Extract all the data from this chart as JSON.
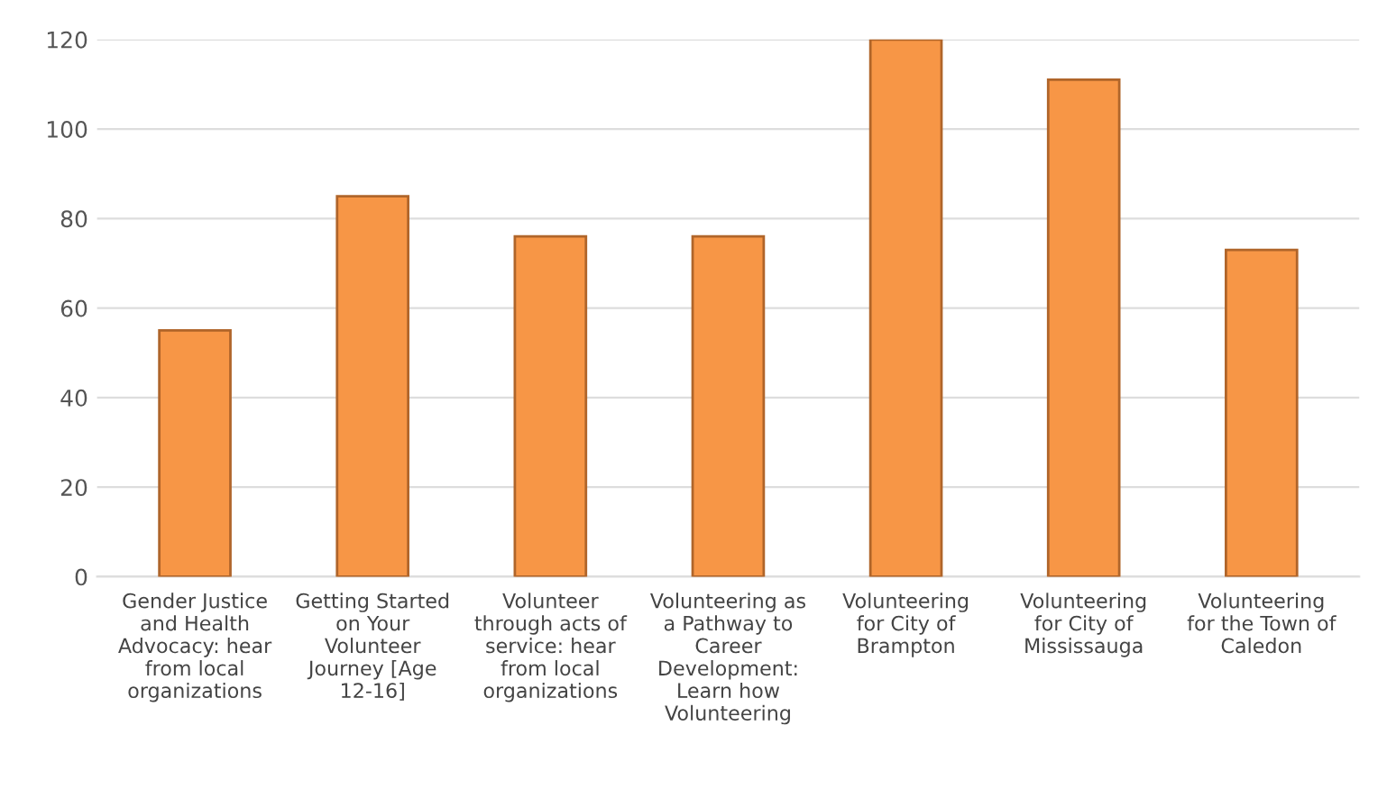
{
  "chart_data": {
    "type": "bar",
    "categories": [
      "Gender Justice and Health Advocacy: hear from local organizations",
      "Getting Started on Your Volunteer Journey [Age 12-16]",
      "Volunteer through acts of service: hear from local organizations",
      "Volunteering as a Pathway to Career Development: Learn how Volunteering",
      "Volunteering for City of Brampton",
      "Volunteering for City of Mississauga",
      "Volunteering for the Town of Caledon"
    ],
    "values": [
      55,
      85,
      76,
      76,
      120,
      111,
      73
    ],
    "color": "#f79646",
    "ylim": [
      0,
      120
    ],
    "yticks": [
      0,
      20,
      40,
      60,
      80,
      100,
      120
    ],
    "grid": "y"
  }
}
